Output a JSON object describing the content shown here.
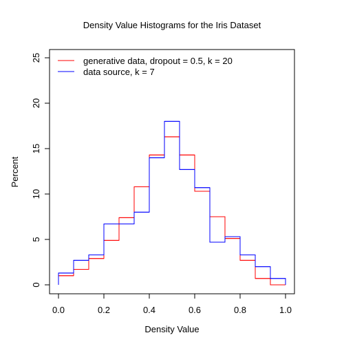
{
  "chart_data": {
    "type": "line",
    "step": true,
    "title": "Density Value Histograms for the Iris Dataset",
    "xlabel": "Density Value",
    "ylabel": "Percent",
    "xlim": [
      0,
      1
    ],
    "ylim": [
      0,
      25
    ],
    "xticks": [
      0.0,
      0.2,
      0.4,
      0.6,
      0.8,
      1.0
    ],
    "xtick_labels": [
      "0.0",
      "0.2",
      "0.4",
      "0.6",
      "0.8",
      "1.0"
    ],
    "yticks": [
      0,
      5,
      10,
      15,
      20,
      25
    ],
    "ytick_labels": [
      "0",
      "5",
      "10",
      "15",
      "20",
      "25"
    ],
    "grid": false,
    "legend_position": "top-left",
    "bin_edges": [
      0.0,
      0.0667,
      0.1333,
      0.2,
      0.2667,
      0.3333,
      0.4,
      0.4667,
      0.5333,
      0.6,
      0.6667,
      0.7333,
      0.8,
      0.8667,
      0.9333,
      1.0
    ],
    "series": [
      {
        "name": "generative data, dropout = 0.5, k = 20",
        "color": "#ff0000",
        "values": [
          1.0,
          1.7,
          2.9,
          4.9,
          7.4,
          10.8,
          14.3,
          16.3,
          14.3,
          10.3,
          7.5,
          5.1,
          2.7,
          0.7,
          0.0
        ]
      },
      {
        "name": "data source, k = 7",
        "color": "#0000ff",
        "values": [
          1.3,
          2.7,
          3.3,
          6.7,
          6.7,
          8.0,
          14.0,
          18.0,
          12.7,
          10.7,
          4.7,
          5.3,
          3.3,
          2.0,
          0.7
        ]
      }
    ]
  }
}
